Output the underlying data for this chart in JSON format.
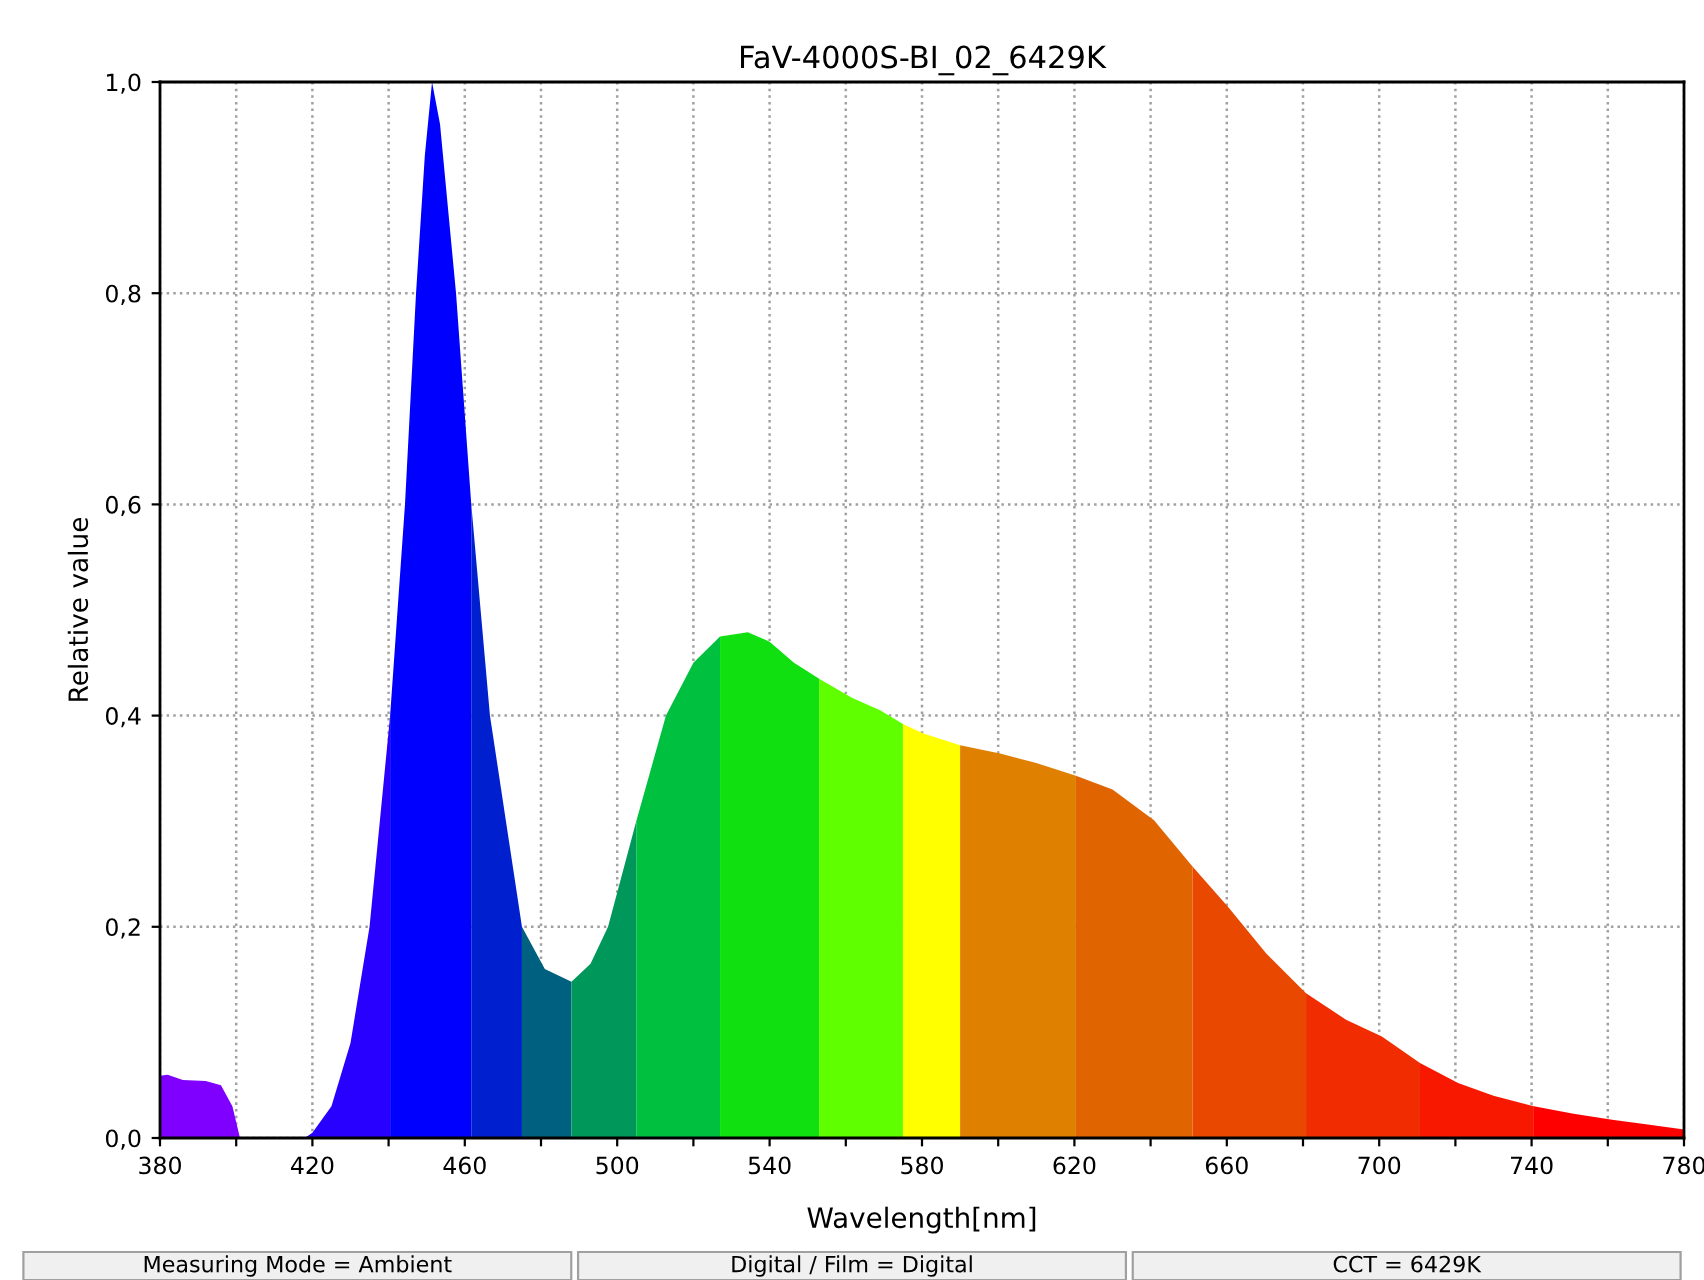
{
  "chart_data": {
    "type": "area",
    "title": "FaV-4000S-BI_02_6429K",
    "xlabel": "Wavelength[nm]",
    "ylabel": "Relative value",
    "series": [
      {
        "color": "#8000ff",
        "x": [
          380,
          382,
          386,
          392,
          396,
          399,
          401
        ],
        "values": [
          0.059,
          0.06,
          0.055,
          0.054,
          0.05,
          0.03,
          0
        ]
      },
      {
        "color": "#2800ff",
        "x": [
          418,
          420,
          425,
          430,
          435,
          440.4
        ],
        "values": [
          0,
          0.005,
          0.03,
          0.09,
          0.2,
          0.4
        ]
      },
      {
        "color": "#0000ff",
        "x": [
          440.4,
          444.3,
          447.2,
          449.5,
          451.4,
          453.5,
          457.7,
          461.7
        ],
        "values": [
          0.4,
          0.6,
          0.8,
          0.93,
          1.0,
          0.96,
          0.8,
          0.6
        ]
      },
      {
        "color": "#0020d0",
        "x": [
          461.7,
          466.6,
          475
        ],
        "values": [
          0.6,
          0.4,
          0.2
        ]
      },
      {
        "color": "#006080",
        "x": [
          475,
          481,
          488
        ],
        "values": [
          0.2,
          0.16,
          0.148
        ]
      },
      {
        "color": "#00985a",
        "x": [
          488,
          493,
          497.6,
          505
        ],
        "values": [
          0.148,
          0.165,
          0.2,
          0.3
        ]
      },
      {
        "color": "#00c040",
        "x": [
          505,
          512.8,
          520,
          527
        ],
        "values": [
          0.3,
          0.4,
          0.45,
          0.475
        ]
      },
      {
        "color": "#10e010",
        "x": [
          527,
          534.3,
          540,
          546.4,
          553
        ],
        "values": [
          0.475,
          0.479,
          0.47,
          0.45,
          0.435
        ]
      },
      {
        "color": "#60ff00",
        "x": [
          553,
          561.6,
          569,
          575
        ],
        "values": [
          0.435,
          0.417,
          0.405,
          0.392
        ]
      },
      {
        "color": "#ffff00",
        "x": [
          575,
          580.4,
          590
        ],
        "values": [
          0.392,
          0.383,
          0.372
        ]
      },
      {
        "color": "#e08000",
        "x": [
          590,
          600.5,
          610,
          620.4
        ],
        "values": [
          0.372,
          0.364,
          0.355,
          0.343
        ]
      },
      {
        "color": "#e06400",
        "x": [
          620.4,
          630,
          640.9,
          651
        ],
        "values": [
          0.343,
          0.33,
          0.301,
          0.257
        ]
      },
      {
        "color": "#e84800",
        "x": [
          651,
          660.3,
          670.3,
          680.8
        ],
        "values": [
          0.257,
          0.219,
          0.175,
          0.137
        ]
      },
      {
        "color": "#f02c00",
        "x": [
          680.8,
          691.3,
          700.7,
          710.7
        ],
        "values": [
          0.137,
          0.112,
          0.096,
          0.071
        ]
      },
      {
        "color": "#f81800",
        "x": [
          710.7,
          720.7,
          730,
          740.6
        ],
        "values": [
          0.071,
          0.052,
          0.04,
          0.03
        ]
      },
      {
        "color": "#ff0000",
        "x": [
          740.6,
          751,
          761.6,
          770,
          780
        ],
        "values": [
          0.03,
          0.023,
          0.017,
          0.013,
          0.008
        ]
      }
    ],
    "xlim": [
      380,
      780
    ],
    "ylim": [
      0,
      1.0
    ],
    "xticks": [
      380,
      {
        "value": 400,
        "label": null
      },
      420,
      {
        "value": 440,
        "label": null
      },
      460,
      {
        "value": 480,
        "label": null
      },
      500,
      {
        "value": 520,
        "label": null
      },
      540,
      {
        "value": 560,
        "label": null
      },
      580,
      {
        "value": 600,
        "label": null
      },
      620,
      {
        "value": 640,
        "label": null
      },
      660,
      {
        "value": 680,
        "label": null
      },
      700,
      {
        "value": 720,
        "label": null
      },
      740,
      {
        "value": 760,
        "label": null
      },
      780
    ],
    "yticks": [
      {
        "value": 0,
        "label": "0,0"
      },
      {
        "value": 0.2,
        "label": "0,2"
      },
      {
        "value": 0.4,
        "label": "0,4"
      },
      {
        "value": 0.6,
        "label": "0,6"
      },
      {
        "value": 0.8,
        "label": "0,8"
      },
      {
        "value": 1.0,
        "label": "1,0"
      }
    ],
    "grid": true,
    "annotations": [
      "Measuring Mode = Ambient",
      "Digital / Film = Digital",
      "CCT = 6429K"
    ]
  }
}
